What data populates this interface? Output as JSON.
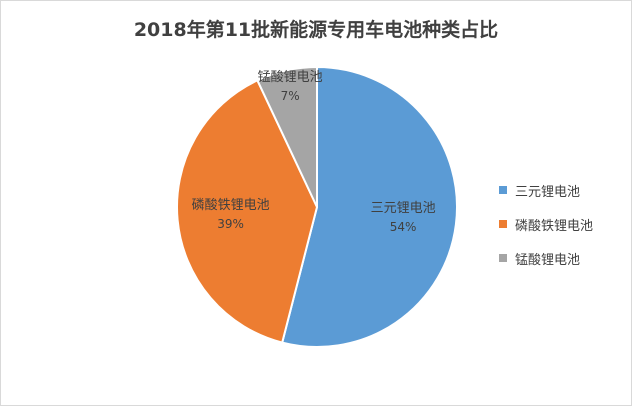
{
  "chart_data": {
    "type": "pie",
    "title": "2018年第11批新能源专用车电池种类占比",
    "slices": [
      {
        "label": "三元锂电池",
        "value": 54,
        "value_text": "54%",
        "color": "#5B9BD5"
      },
      {
        "label": "磷酸铁锂电池",
        "value": 39,
        "value_text": "39%",
        "color": "#ED7D31"
      },
      {
        "label": "锰酸锂电池",
        "value": 7,
        "value_text": "7%",
        "color": "#A5A5A5"
      }
    ],
    "legend_position": "right"
  }
}
